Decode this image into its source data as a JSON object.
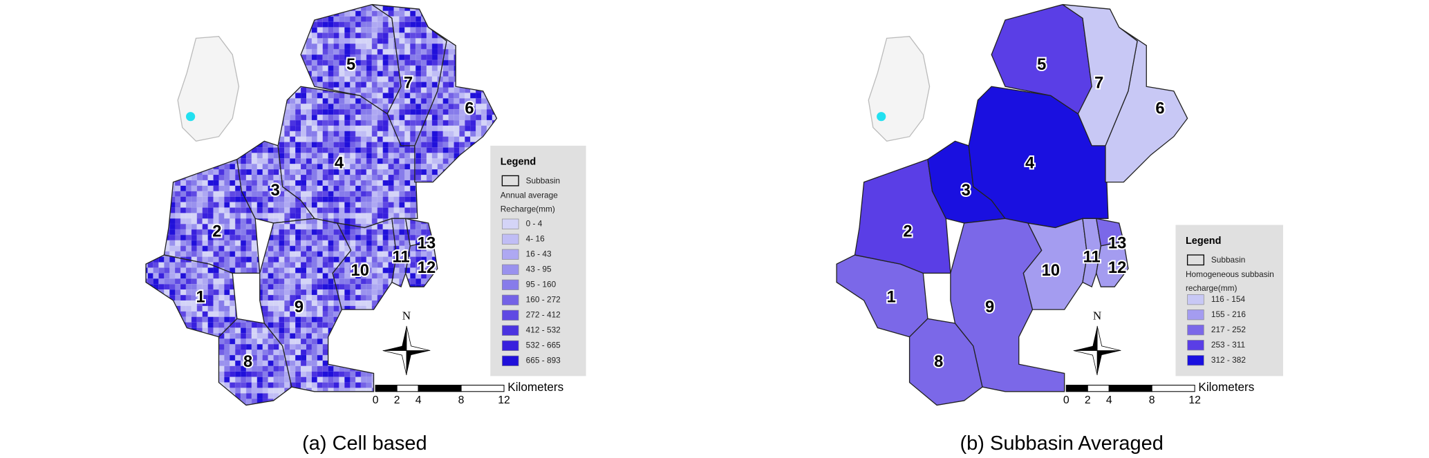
{
  "panels": [
    {
      "caption": "(a) Cell based",
      "legend": {
        "title": "Legend",
        "boundary": "Subbasin",
        "heading": [
          "Annual average",
          "Recharge(mm)"
        ],
        "items": [
          {
            "label": "0 - 4",
            "color": "#d4d4f7"
          },
          {
            "label": "4- 16",
            "color": "#c0bdf5"
          },
          {
            "label": "16 - 43",
            "color": "#aea8f2"
          },
          {
            "label": "43 - 95",
            "color": "#9a92ee"
          },
          {
            "label": "95 - 160",
            "color": "#877cea"
          },
          {
            "label": "160 - 272",
            "color": "#7462e6"
          },
          {
            "label": "272 - 412",
            "color": "#5f49e3"
          },
          {
            "label": "412 - 532",
            "color": "#4b33e0"
          },
          {
            "label": "532 - 665",
            "color": "#3820dd"
          },
          {
            "label": "665 - 893",
            "color": "#2010da"
          }
        ]
      },
      "subbasins": [
        {
          "label": "1"
        },
        {
          "label": "2"
        },
        {
          "label": "3"
        },
        {
          "label": "4"
        },
        {
          "label": "5"
        },
        {
          "label": "6"
        },
        {
          "label": "7"
        },
        {
          "label": "8"
        },
        {
          "label": "9"
        },
        {
          "label": "10"
        },
        {
          "label": "11"
        },
        {
          "label": "12"
        },
        {
          "label": "13"
        }
      ],
      "north": "N",
      "scale": {
        "ticks": [
          0,
          2,
          4,
          8,
          12
        ],
        "unit": "Kilometers"
      }
    },
    {
      "caption": "(b) Subbasin Averaged",
      "legend": {
        "title": "Legend",
        "boundary": "Subbasin",
        "heading": [
          "Homogeneous subbasin",
          "recharge(mm)"
        ],
        "items": [
          {
            "label": "116 - 154",
            "color": "#c8c8f5"
          },
          {
            "label": "155 - 216",
            "color": "#a49cf0"
          },
          {
            "label": "217 - 252",
            "color": "#7b68e8"
          },
          {
            "label": "253 - 311",
            "color": "#5a3ee6"
          },
          {
            "label": "312 - 382",
            "color": "#1a10e0"
          }
        ]
      },
      "subbasins": [
        {
          "label": "1",
          "color": "#7b68e8"
        },
        {
          "label": "2",
          "color": "#5a3ee6"
        },
        {
          "label": "3",
          "color": "#1a10e0"
        },
        {
          "label": "4",
          "color": "#1a10e0"
        },
        {
          "label": "5",
          "color": "#5a3ee6"
        },
        {
          "label": "6",
          "color": "#c8c8f5"
        },
        {
          "label": "7",
          "color": "#c8c8f5"
        },
        {
          "label": "8",
          "color": "#7b68e8"
        },
        {
          "label": "9",
          "color": "#7b68e8"
        },
        {
          "label": "10",
          "color": "#a49cf0"
        },
        {
          "label": "11",
          "color": "#a49cf0"
        },
        {
          "label": "12",
          "color": "#a49cf0"
        },
        {
          "label": "13",
          "color": "#7b68e8"
        }
      ],
      "north": "N",
      "scale": {
        "ticks": [
          0,
          2,
          4,
          8,
          12
        ],
        "unit": "Kilometers"
      }
    }
  ]
}
